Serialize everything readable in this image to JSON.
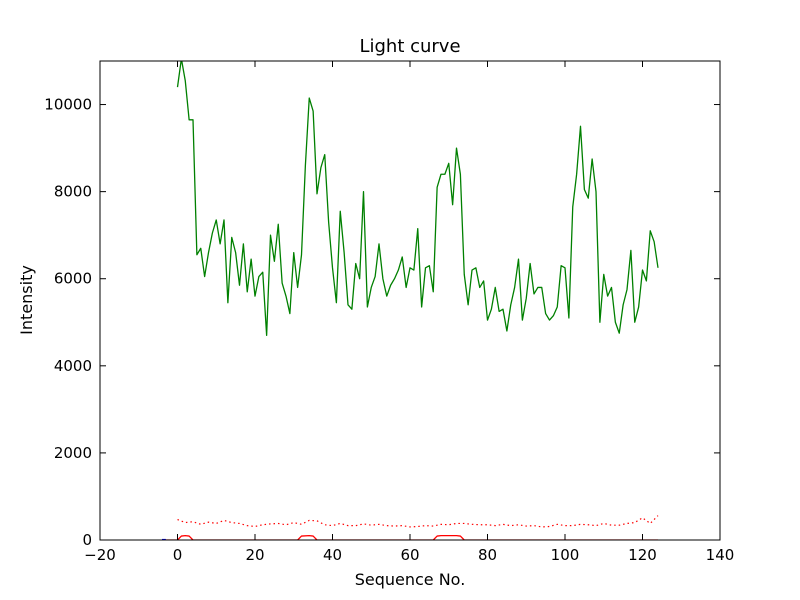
{
  "chart_data": {
    "type": "line",
    "title": "Light curve",
    "xlabel": "Sequence No.",
    "ylabel": "Intensity",
    "xlim": [
      -20,
      140
    ],
    "ylim": [
      0,
      11000
    ],
    "xticks": [
      -20,
      0,
      20,
      40,
      60,
      80,
      100,
      120,
      140
    ],
    "yticks": [
      0,
      2000,
      4000,
      6000,
      8000,
      10000
    ],
    "xtick_labels": [
      "−20",
      "0",
      "20",
      "40",
      "60",
      "80",
      "100",
      "120",
      "140"
    ],
    "ytick_labels": [
      "0",
      "2000",
      "4000",
      "6000",
      "8000",
      "10000"
    ],
    "grid": false,
    "series": [
      {
        "color": "#008000",
        "style": "solid",
        "x": [
          0,
          1,
          2,
          3,
          4,
          5,
          6,
          7,
          8,
          9,
          10,
          11,
          12,
          13,
          14,
          15,
          16,
          17,
          18,
          19,
          20,
          21,
          22,
          23,
          24,
          25,
          26,
          27,
          28,
          29,
          30,
          31,
          32,
          33,
          34,
          35,
          36,
          37,
          38,
          39,
          40,
          41,
          42,
          43,
          44,
          45,
          46,
          47,
          48,
          49,
          50,
          51,
          52,
          53,
          54,
          55,
          56,
          57,
          58,
          59,
          60,
          61,
          62,
          63,
          64,
          65,
          66,
          67,
          68,
          69,
          70,
          71,
          72,
          73,
          74,
          75,
          76,
          77,
          78,
          79,
          80,
          81,
          82,
          83,
          84,
          85,
          86,
          87,
          88,
          89,
          90,
          91,
          92,
          93,
          94,
          95,
          96,
          97,
          98,
          99,
          100,
          101,
          102,
          103,
          104,
          105,
          106,
          107,
          108,
          109,
          110,
          111,
          112,
          113,
          114,
          115,
          116,
          117,
          118,
          119,
          120,
          121,
          122,
          123,
          124
        ],
        "y": [
          10400,
          11050,
          10550,
          9650,
          9650,
          6550,
          6700,
          6050,
          6600,
          7050,
          7350,
          6800,
          7350,
          5450,
          6950,
          6600,
          5850,
          6800,
          5700,
          6450,
          5600,
          6050,
          6150,
          4700,
          7000,
          6400,
          7250,
          5900,
          5600,
          5200,
          6600,
          5800,
          6550,
          8600,
          10150,
          9850,
          7950,
          8550,
          8850,
          7300,
          6250,
          5450,
          7550,
          6600,
          5400,
          5300,
          6350,
          6000,
          8000,
          5350,
          5800,
          6050,
          6800,
          6000,
          5600,
          5850,
          6000,
          6200,
          6500,
          5800,
          6250,
          6200,
          7150,
          5350,
          6250,
          6300,
          5700,
          8100,
          8400,
          8400,
          8650,
          7700,
          9000,
          8400,
          6100,
          5400,
          6200,
          6250,
          5800,
          5950,
          5050,
          5300,
          5800,
          5250,
          5300,
          4800,
          5400,
          5800,
          6450,
          5050,
          5550,
          6350,
          5650,
          5800,
          5800,
          5200,
          5050,
          5150,
          5350,
          6300,
          6250,
          5100,
          7650,
          8400,
          9500,
          8050,
          7850,
          8750,
          8000,
          5000,
          6100,
          5600,
          5800,
          5000,
          4750,
          5400,
          5750,
          6650,
          5000,
          5350,
          6200,
          5950,
          7100,
          6850,
          6250
        ]
      },
      {
        "color": "#ff0000",
        "style": "dotted",
        "x": [
          0,
          2,
          4,
          6,
          8,
          10,
          12,
          14,
          16,
          18,
          20,
          22,
          24,
          26,
          28,
          30,
          32,
          34,
          36,
          38,
          40,
          42,
          44,
          46,
          48,
          50,
          52,
          54,
          56,
          58,
          60,
          62,
          64,
          66,
          68,
          70,
          72,
          74,
          76,
          78,
          80,
          82,
          84,
          86,
          88,
          90,
          92,
          94,
          96,
          98,
          100,
          102,
          104,
          106,
          108,
          110,
          112,
          114,
          116,
          118,
          120,
          122,
          124
        ],
        "y": [
          470,
          400,
          420,
          360,
          410,
          380,
          450,
          400,
          380,
          330,
          310,
          350,
          370,
          380,
          350,
          400,
          360,
          450,
          440,
          350,
          330,
          380,
          330,
          330,
          370,
          340,
          360,
          330,
          320,
          330,
          300,
          310,
          330,
          320,
          360,
          350,
          380,
          380,
          360,
          350,
          350,
          330,
          360,
          330,
          350,
          320,
          330,
          300,
          310,
          360,
          330,
          330,
          360,
          350,
          330,
          380,
          340,
          340,
          380,
          400,
          510,
          380,
          560
        ]
      },
      {
        "color": "#ff0000",
        "style": "solid",
        "x": [
          -3,
          0,
          1,
          2,
          3,
          4,
          31,
          32,
          34,
          35,
          36,
          37,
          66,
          67,
          68,
          72,
          73,
          74,
          124
        ],
        "y": [
          0,
          0,
          90,
          100,
          90,
          0,
          0,
          90,
          100,
          90,
          0,
          0,
          0,
          90,
          100,
          100,
          90,
          0,
          0
        ]
      },
      {
        "color": "#0000ff",
        "style": "solid",
        "x": [
          -4,
          -3
        ],
        "y": [
          10,
          10
        ]
      }
    ]
  }
}
